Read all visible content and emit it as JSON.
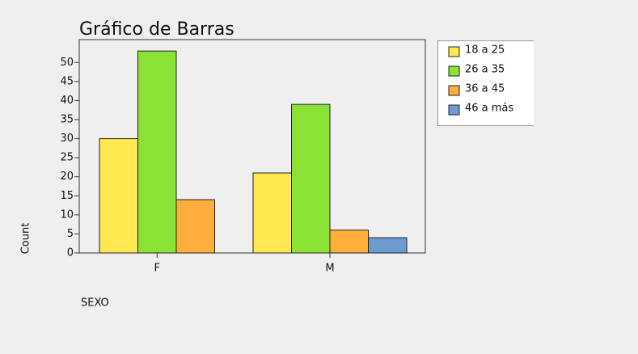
{
  "chart_data": {
    "type": "bar",
    "title": "Gráfico de Barras",
    "categories": [
      "F",
      "M"
    ],
    "series": [
      {
        "name": "18 a 25",
        "color": "#ffe84f",
        "values": [
          30,
          21
        ]
      },
      {
        "name": "26 a 35",
        "color": "#8ae234",
        "values": [
          53,
          39
        ]
      },
      {
        "name": "36 a 45",
        "color": "#ffad3d",
        "values": [
          14,
          6
        ]
      },
      {
        "name": "46 a más",
        "color": "#6d9bd1",
        "values": [
          null,
          4
        ]
      }
    ],
    "ylabel": "Count",
    "xlabel": "SEXO",
    "ylim": [
      0,
      56
    ],
    "yticks": [
      0,
      5,
      10,
      15,
      20,
      25,
      30,
      35,
      40,
      45,
      50
    ],
    "legend": "right"
  }
}
